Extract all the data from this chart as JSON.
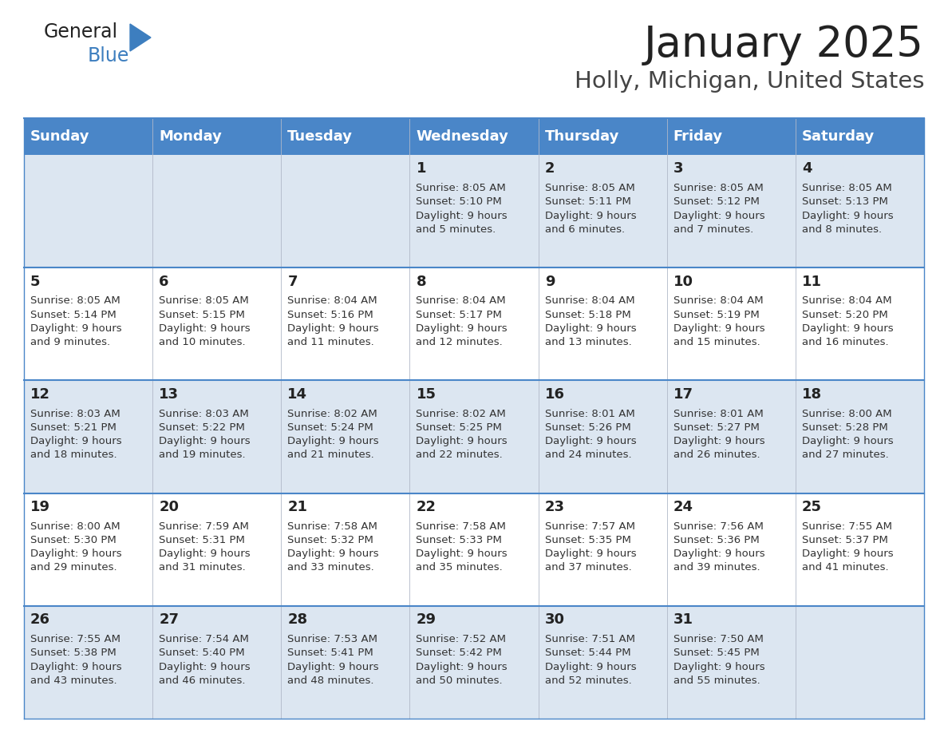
{
  "title": "January 2025",
  "subtitle": "Holly, Michigan, United States",
  "header_color": "#4a86c8",
  "header_text_color": "#ffffff",
  "cell_bg_light": "#dce6f1",
  "cell_bg_white": "#ffffff",
  "border_color": "#4a86c8",
  "row_line_color": "#4a86c8",
  "day_headers": [
    "Sunday",
    "Monday",
    "Tuesday",
    "Wednesday",
    "Thursday",
    "Friday",
    "Saturday"
  ],
  "weeks": [
    [
      {
        "day": null,
        "sunrise": null,
        "sunset": null,
        "daylight": null
      },
      {
        "day": null,
        "sunrise": null,
        "sunset": null,
        "daylight": null
      },
      {
        "day": null,
        "sunrise": null,
        "sunset": null,
        "daylight": null
      },
      {
        "day": 1,
        "sunrise": "8:05 AM",
        "sunset": "5:10 PM",
        "daylight": "9 hours\nand 5 minutes."
      },
      {
        "day": 2,
        "sunrise": "8:05 AM",
        "sunset": "5:11 PM",
        "daylight": "9 hours\nand 6 minutes."
      },
      {
        "day": 3,
        "sunrise": "8:05 AM",
        "sunset": "5:12 PM",
        "daylight": "9 hours\nand 7 minutes."
      },
      {
        "day": 4,
        "sunrise": "8:05 AM",
        "sunset": "5:13 PM",
        "daylight": "9 hours\nand 8 minutes."
      }
    ],
    [
      {
        "day": 5,
        "sunrise": "8:05 AM",
        "sunset": "5:14 PM",
        "daylight": "9 hours\nand 9 minutes."
      },
      {
        "day": 6,
        "sunrise": "8:05 AM",
        "sunset": "5:15 PM",
        "daylight": "9 hours\nand 10 minutes."
      },
      {
        "day": 7,
        "sunrise": "8:04 AM",
        "sunset": "5:16 PM",
        "daylight": "9 hours\nand 11 minutes."
      },
      {
        "day": 8,
        "sunrise": "8:04 AM",
        "sunset": "5:17 PM",
        "daylight": "9 hours\nand 12 minutes."
      },
      {
        "day": 9,
        "sunrise": "8:04 AM",
        "sunset": "5:18 PM",
        "daylight": "9 hours\nand 13 minutes."
      },
      {
        "day": 10,
        "sunrise": "8:04 AM",
        "sunset": "5:19 PM",
        "daylight": "9 hours\nand 15 minutes."
      },
      {
        "day": 11,
        "sunrise": "8:04 AM",
        "sunset": "5:20 PM",
        "daylight": "9 hours\nand 16 minutes."
      }
    ],
    [
      {
        "day": 12,
        "sunrise": "8:03 AM",
        "sunset": "5:21 PM",
        "daylight": "9 hours\nand 18 minutes."
      },
      {
        "day": 13,
        "sunrise": "8:03 AM",
        "sunset": "5:22 PM",
        "daylight": "9 hours\nand 19 minutes."
      },
      {
        "day": 14,
        "sunrise": "8:02 AM",
        "sunset": "5:24 PM",
        "daylight": "9 hours\nand 21 minutes."
      },
      {
        "day": 15,
        "sunrise": "8:02 AM",
        "sunset": "5:25 PM",
        "daylight": "9 hours\nand 22 minutes."
      },
      {
        "day": 16,
        "sunrise": "8:01 AM",
        "sunset": "5:26 PM",
        "daylight": "9 hours\nand 24 minutes."
      },
      {
        "day": 17,
        "sunrise": "8:01 AM",
        "sunset": "5:27 PM",
        "daylight": "9 hours\nand 26 minutes."
      },
      {
        "day": 18,
        "sunrise": "8:00 AM",
        "sunset": "5:28 PM",
        "daylight": "9 hours\nand 27 minutes."
      }
    ],
    [
      {
        "day": 19,
        "sunrise": "8:00 AM",
        "sunset": "5:30 PM",
        "daylight": "9 hours\nand 29 minutes."
      },
      {
        "day": 20,
        "sunrise": "7:59 AM",
        "sunset": "5:31 PM",
        "daylight": "9 hours\nand 31 minutes."
      },
      {
        "day": 21,
        "sunrise": "7:58 AM",
        "sunset": "5:32 PM",
        "daylight": "9 hours\nand 33 minutes."
      },
      {
        "day": 22,
        "sunrise": "7:58 AM",
        "sunset": "5:33 PM",
        "daylight": "9 hours\nand 35 minutes."
      },
      {
        "day": 23,
        "sunrise": "7:57 AM",
        "sunset": "5:35 PM",
        "daylight": "9 hours\nand 37 minutes."
      },
      {
        "day": 24,
        "sunrise": "7:56 AM",
        "sunset": "5:36 PM",
        "daylight": "9 hours\nand 39 minutes."
      },
      {
        "day": 25,
        "sunrise": "7:55 AM",
        "sunset": "5:37 PM",
        "daylight": "9 hours\nand 41 minutes."
      }
    ],
    [
      {
        "day": 26,
        "sunrise": "7:55 AM",
        "sunset": "5:38 PM",
        "daylight": "9 hours\nand 43 minutes."
      },
      {
        "day": 27,
        "sunrise": "7:54 AM",
        "sunset": "5:40 PM",
        "daylight": "9 hours\nand 46 minutes."
      },
      {
        "day": 28,
        "sunrise": "7:53 AM",
        "sunset": "5:41 PM",
        "daylight": "9 hours\nand 48 minutes."
      },
      {
        "day": 29,
        "sunrise": "7:52 AM",
        "sunset": "5:42 PM",
        "daylight": "9 hours\nand 50 minutes."
      },
      {
        "day": 30,
        "sunrise": "7:51 AM",
        "sunset": "5:44 PM",
        "daylight": "9 hours\nand 52 minutes."
      },
      {
        "day": 31,
        "sunrise": "7:50 AM",
        "sunset": "5:45 PM",
        "daylight": "9 hours\nand 55 minutes."
      },
      {
        "day": null,
        "sunrise": null,
        "sunset": null,
        "daylight": null
      }
    ]
  ],
  "background_color": "#ffffff",
  "title_fontsize": 38,
  "subtitle_fontsize": 21,
  "header_fontsize": 13,
  "day_num_fontsize": 13,
  "cell_text_fontsize": 9.5,
  "logo_general_fontsize": 17,
  "logo_blue_fontsize": 17
}
